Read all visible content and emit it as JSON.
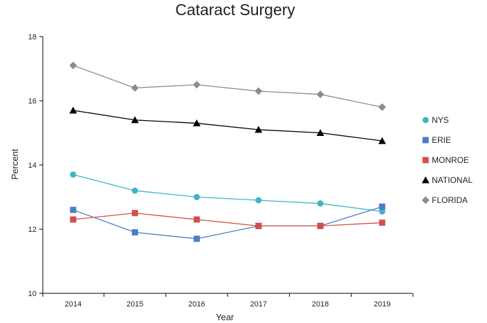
{
  "chart_data": {
    "type": "line",
    "title": "Cataract Surgery",
    "xlabel": "Year",
    "ylabel": "Percent",
    "x": [
      "2014",
      "2015",
      "2016",
      "2017",
      "2018",
      "2019"
    ],
    "ylim": [
      10,
      18
    ],
    "yticks": [
      "10",
      "12",
      "14",
      "16",
      "18"
    ],
    "legend_position": "right",
    "grid": false,
    "series": [
      {
        "name": "NYS",
        "color": "#3eb5c4",
        "marker": "circle",
        "values": [
          13.7,
          13.2,
          13.0,
          12.9,
          12.8,
          12.55
        ]
      },
      {
        "name": "ERIE",
        "color": "#4a7dc4",
        "marker": "square",
        "values": [
          12.6,
          11.9,
          11.7,
          12.1,
          12.1,
          12.7
        ]
      },
      {
        "name": "MONROE",
        "color": "#d0504d",
        "marker": "square",
        "values": [
          12.3,
          12.5,
          12.3,
          12.1,
          12.1,
          12.2
        ]
      },
      {
        "name": "NATIONAL",
        "color": "#000000",
        "marker": "triangle",
        "values": [
          15.7,
          15.4,
          15.3,
          15.1,
          15.0,
          14.75
        ]
      },
      {
        "name": "FLORIDA",
        "color": "#8c8c8c",
        "marker": "diamond",
        "values": [
          17.1,
          16.4,
          16.5,
          16.3,
          16.2,
          15.8
        ]
      }
    ]
  }
}
